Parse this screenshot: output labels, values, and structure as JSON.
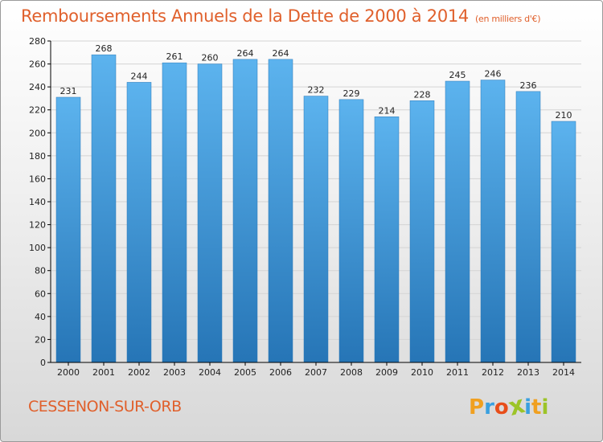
{
  "chart_data": {
    "type": "bar",
    "title": "Remboursements Annuels de la Dette de 2000 à 2014",
    "subtitle": "(en milliers d'€)",
    "categories": [
      "2000",
      "2001",
      "2002",
      "2003",
      "2004",
      "2005",
      "2006",
      "2007",
      "2008",
      "2009",
      "2010",
      "2011",
      "2012",
      "2013",
      "2014"
    ],
    "values": [
      231,
      268,
      244,
      261,
      260,
      264,
      264,
      232,
      229,
      214,
      228,
      245,
      246,
      236,
      210
    ],
    "ylim": [
      0,
      280
    ],
    "yticks": [
      0,
      20,
      40,
      60,
      80,
      100,
      120,
      140,
      160,
      180,
      200,
      220,
      240,
      260,
      280
    ],
    "xlabel": "",
    "ylabel": "",
    "grid": true,
    "bar_color": "#3c95d9",
    "bar_color_top": "#5cb3ee",
    "bar_color_bottom": "#2675b6"
  },
  "location": "CESSENON-SUR-ORB",
  "logo": {
    "text": "Proxiti",
    "letters": [
      "P",
      "r",
      "o",
      "x",
      "i",
      "t",
      "i"
    ],
    "colors": [
      "#f0a020",
      "#3aa0e0",
      "#e84e1a",
      "#9cc428",
      "#3aa0e0",
      "#f0a020",
      "#9cc428"
    ]
  },
  "colors": {
    "title": "#e0602c",
    "axis": "#000000",
    "grid": "#d4d4d4"
  }
}
